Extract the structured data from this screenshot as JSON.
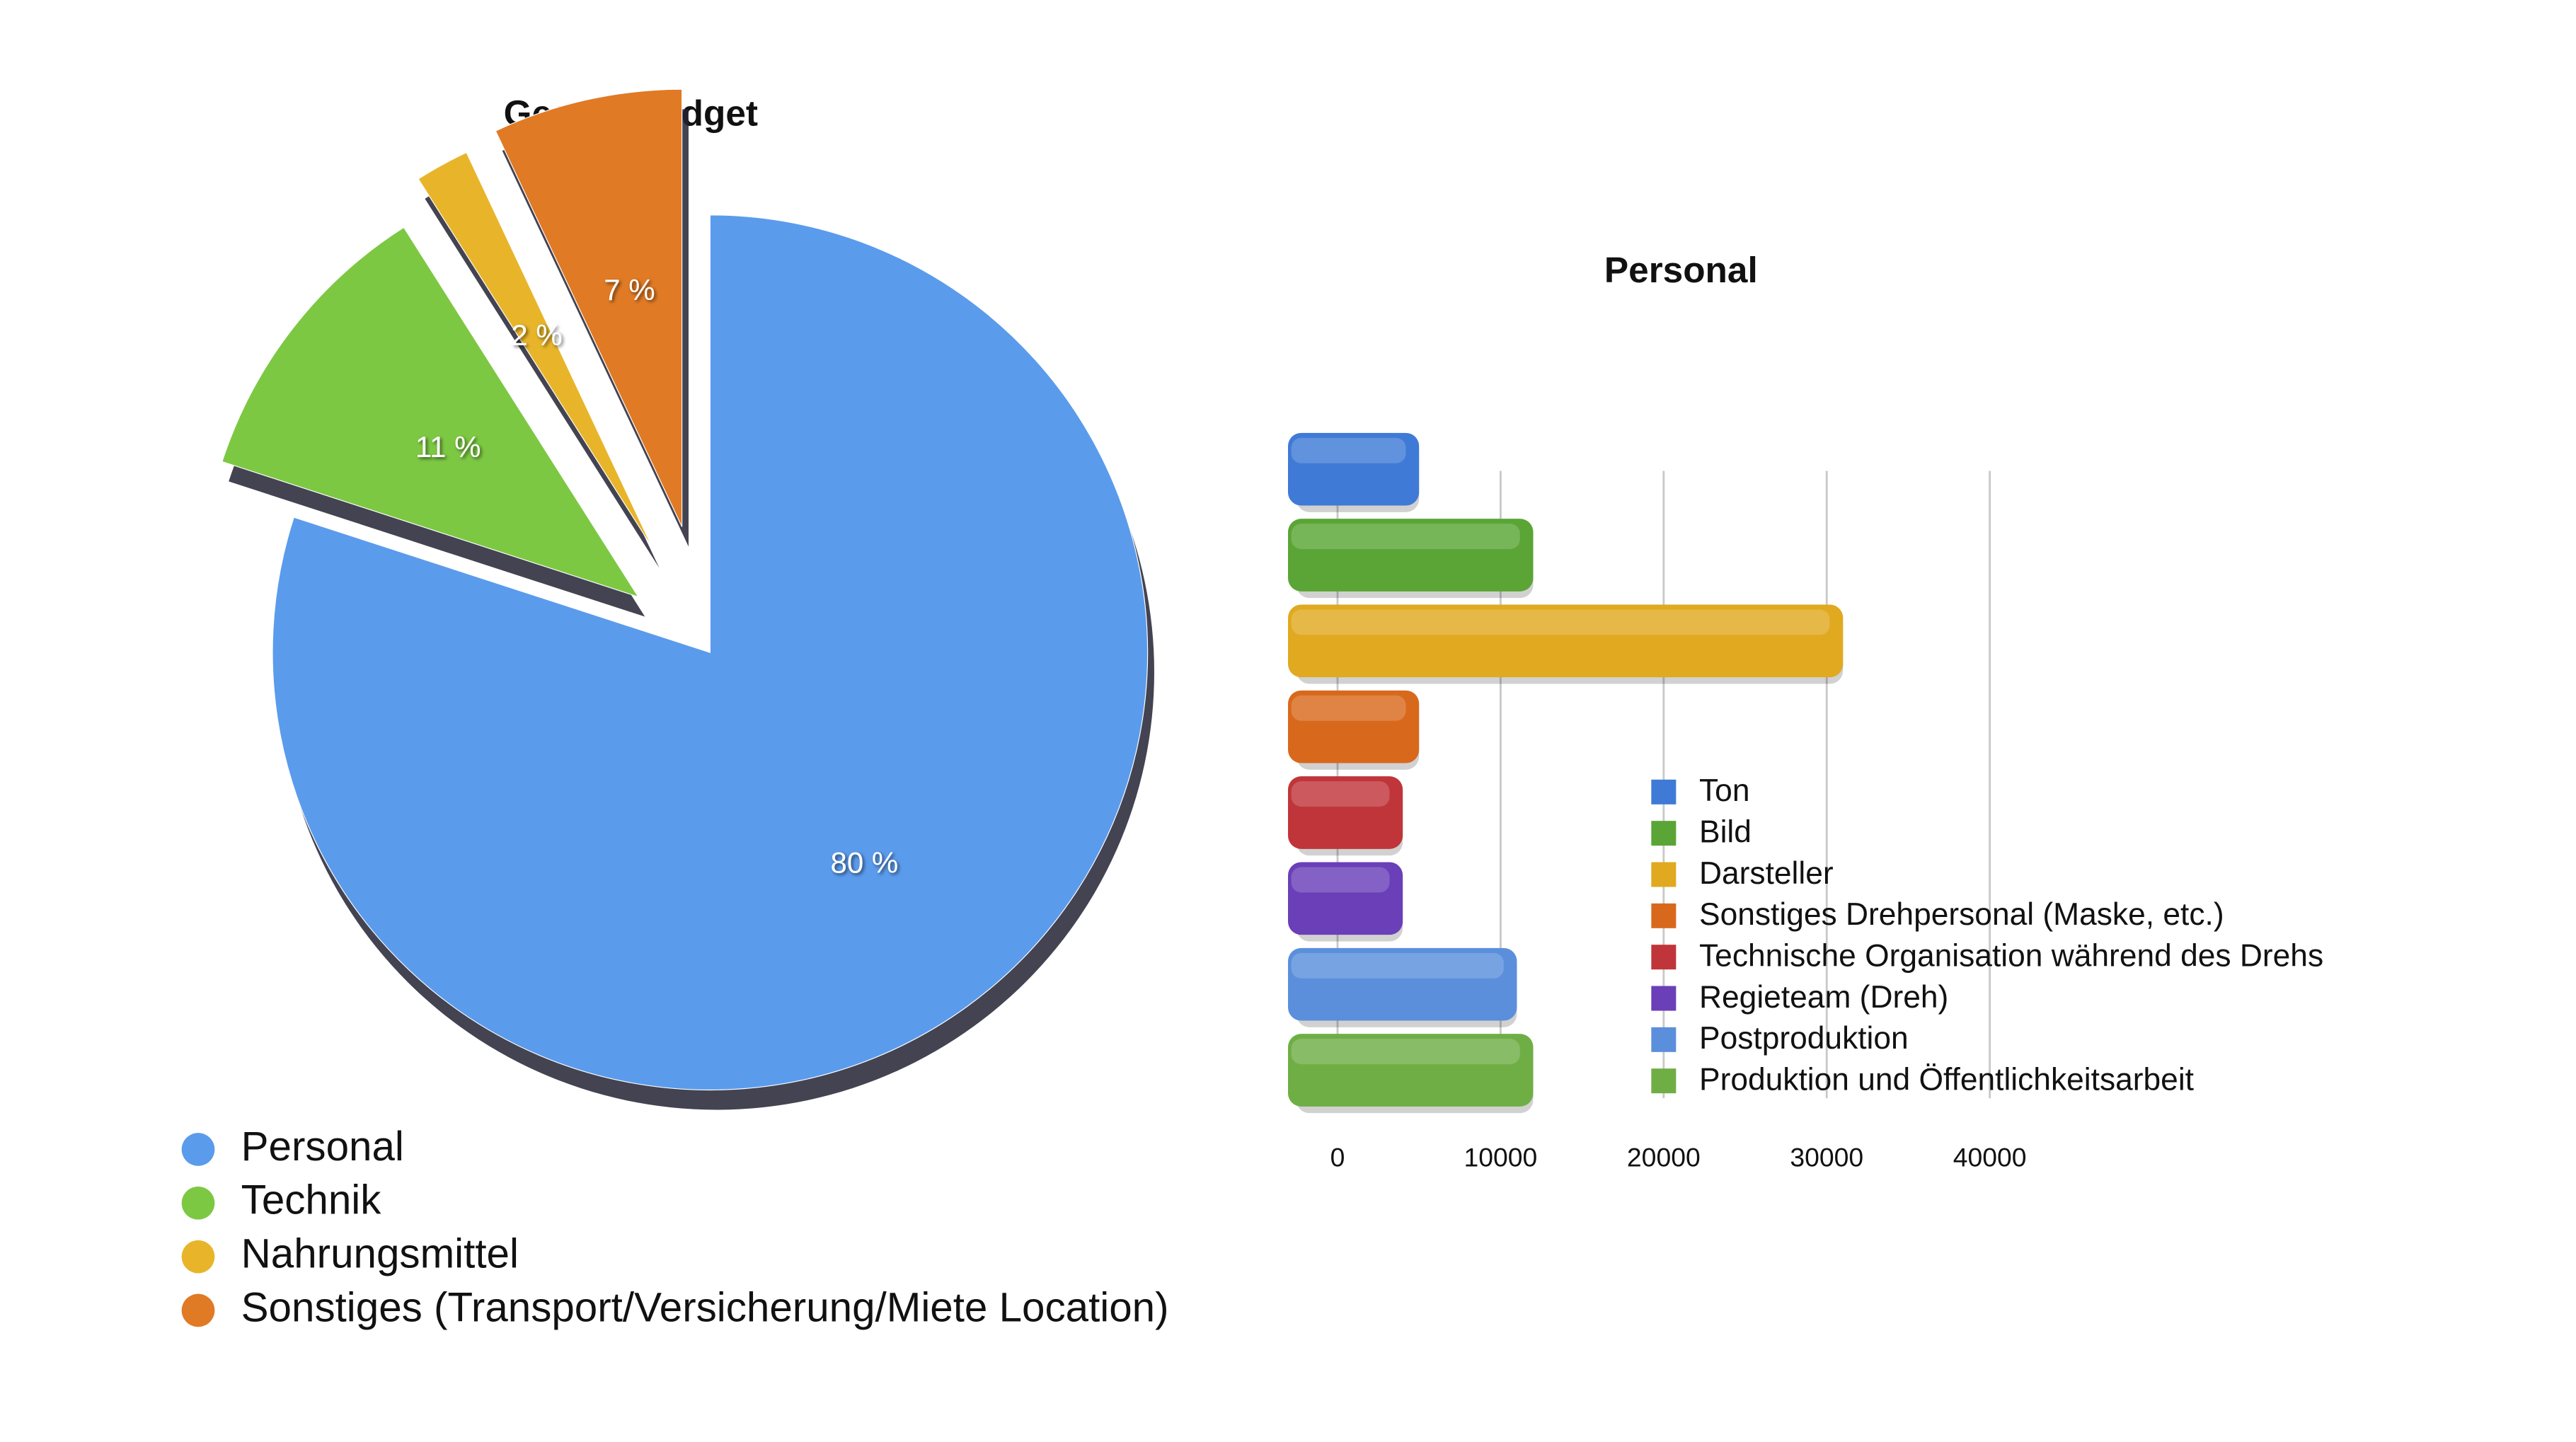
{
  "chart_data": [
    {
      "type": "pie",
      "title": "Gesamtbudget",
      "categories": [
        "Personal",
        "Technik",
        "Nahrungsmittel",
        "Sonstiges (Transport/Versicherung/Miete Location)"
      ],
      "values": [
        80,
        11,
        2,
        7
      ],
      "value_labels": [
        "80 %",
        "11 %",
        "2 %",
        "7 %"
      ],
      "colors": [
        "#5b9bec",
        "#7cc843",
        "#e8b52a",
        "#e07a25"
      ]
    },
    {
      "type": "hbar",
      "title": "Personal",
      "categories": [
        "Ton",
        "Bild",
        "Darsteller",
        "Sonstiges Drehpersonal (Maske, etc.)",
        "Technische Organisation während des Drehs",
        "Regieteam (Dreh)",
        "Postproduktion",
        "Produktion und Öffentlichkeitsarbeit"
      ],
      "values": [
        5000,
        12000,
        31000,
        5000,
        4000,
        4000,
        11000,
        12000
      ],
      "colors": [
        "#3f7ad6",
        "#5aa535",
        "#e0a91f",
        "#d8691c",
        "#c0353a",
        "#6a3fb8",
        "#5b8fdc",
        "#6fae45"
      ],
      "xlim": [
        0,
        40000
      ],
      "xticks": [
        0,
        10000,
        20000,
        30000,
        40000
      ],
      "grid": true
    }
  ]
}
